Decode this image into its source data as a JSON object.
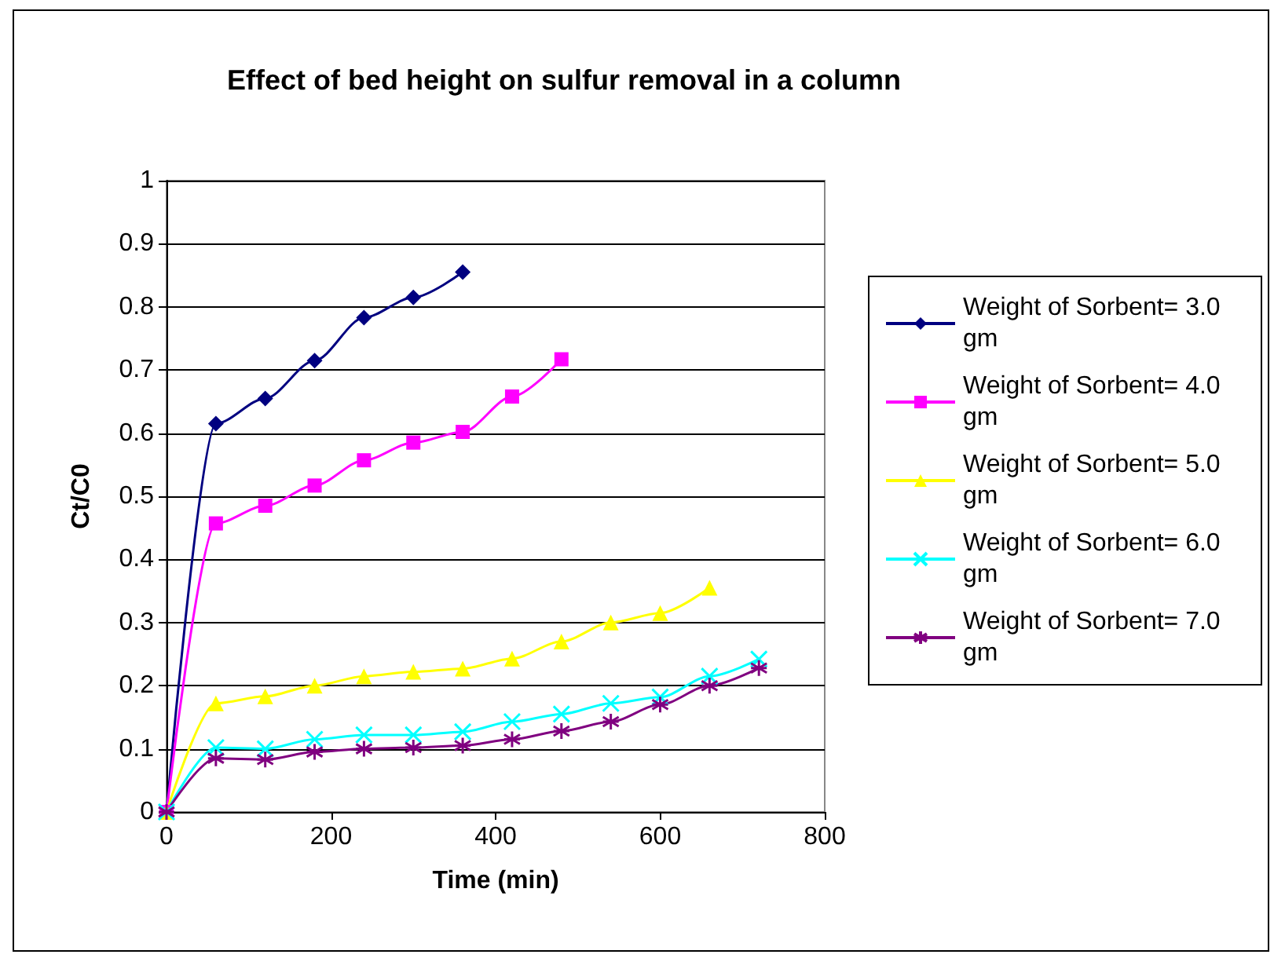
{
  "chart_data": {
    "type": "line",
    "title": "Effect of bed height on sulfur removal in a column",
    "xlabel": "Time (min)",
    "ylabel": "Ct/C0",
    "xlim": [
      0,
      800
    ],
    "xticks": [
      0,
      200,
      400,
      600,
      800
    ],
    "ylim": [
      0,
      1
    ],
    "yticks": [
      0,
      0.1,
      0.2,
      0.3,
      0.4,
      0.5,
      0.6,
      0.7,
      0.8,
      0.9,
      1
    ],
    "grid": "y",
    "legend": "right",
    "line_style": "solid",
    "series": [
      {
        "name": "Weight of Sorbent= 3.0 gm",
        "color": "#000080",
        "marker": "diamond",
        "x": [
          0,
          60,
          120,
          180,
          240,
          300,
          360
        ],
        "values": [
          0,
          0.615,
          0.655,
          0.715,
          0.783,
          0.815,
          0.855
        ]
      },
      {
        "name": "Weight of Sorbent= 4.0 gm",
        "color": "#ff00ff",
        "marker": "square",
        "x": [
          0,
          60,
          120,
          180,
          240,
          300,
          360,
          420,
          480
        ],
        "values": [
          0,
          0.457,
          0.485,
          0.517,
          0.557,
          0.585,
          0.602,
          0.658,
          0.717
        ]
      },
      {
        "name": "Weight of Sorbent= 5.0 gm",
        "color": "#ffff00",
        "marker": "triangle",
        "x": [
          0,
          60,
          120,
          180,
          240,
          300,
          360,
          420,
          480,
          540,
          600,
          660
        ],
        "values": [
          0,
          0.172,
          0.183,
          0.2,
          0.215,
          0.222,
          0.227,
          0.243,
          0.27,
          0.3,
          0.315,
          0.355
        ]
      },
      {
        "name": "Weight of Sorbent= 6.0 gm",
        "color": "#00ffff",
        "marker": "cross",
        "x": [
          0,
          60,
          120,
          180,
          240,
          300,
          360,
          420,
          480,
          540,
          600,
          660,
          720
        ],
        "values": [
          0,
          0.102,
          0.1,
          0.115,
          0.122,
          0.122,
          0.127,
          0.143,
          0.155,
          0.172,
          0.182,
          0.215,
          0.242
        ]
      },
      {
        "name": "Weight of Sorbent= 7.0 gm",
        "color": "#800080",
        "marker": "cross",
        "x": [
          0,
          60,
          120,
          180,
          240,
          300,
          360,
          420,
          480,
          540,
          600,
          660,
          720
        ],
        "values": [
          0,
          0.085,
          0.083,
          0.095,
          0.1,
          0.102,
          0.105,
          0.115,
          0.128,
          0.143,
          0.17,
          0.2,
          0.228
        ]
      }
    ]
  }
}
